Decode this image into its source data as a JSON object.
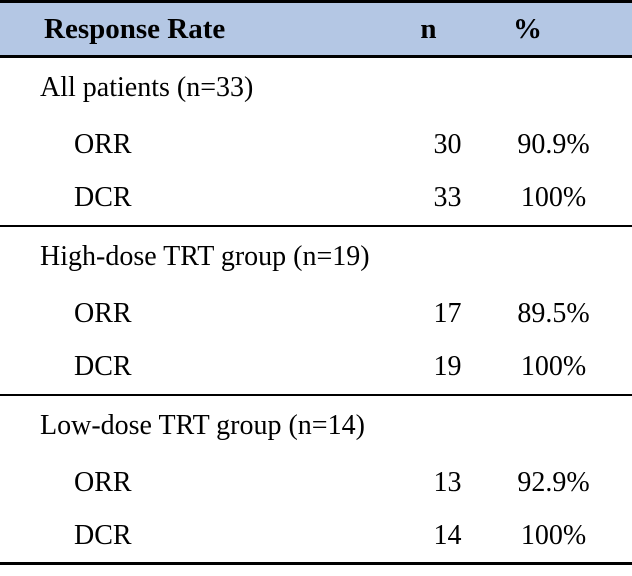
{
  "colors": {
    "header_bg": "#b4c7e4",
    "border": "#000000",
    "text": "#000000"
  },
  "table": {
    "header": {
      "label": "Response Rate",
      "n": "n",
      "pct": "%"
    },
    "sections": [
      {
        "label": "All patients (n=33)",
        "rows": [
          {
            "metric": "ORR",
            "n": "30",
            "pct": "90.9%"
          },
          {
            "metric": "DCR",
            "n": "33",
            "pct": "100%"
          }
        ]
      },
      {
        "label": "High-dose TRT group (n=19)",
        "rows": [
          {
            "metric": "ORR",
            "n": "17",
            "pct": "89.5%"
          },
          {
            "metric": "DCR",
            "n": "19",
            "pct": "100%"
          }
        ]
      },
      {
        "label": "Low-dose TRT group (n=14)",
        "rows": [
          {
            "metric": "ORR",
            "n": "13",
            "pct": "92.9%"
          },
          {
            "metric": "DCR",
            "n": "14",
            "pct": "100%"
          }
        ]
      }
    ]
  },
  "chart_data": {
    "type": "table",
    "title": "Response Rate",
    "columns": [
      "Response Rate",
      "n",
      "%"
    ],
    "rows": [
      [
        "All patients (n=33)",
        null,
        null
      ],
      [
        "ORR",
        30,
        "90.9%"
      ],
      [
        "DCR",
        33,
        "100%"
      ],
      [
        "High-dose TRT group (n=19)",
        null,
        null
      ],
      [
        "ORR",
        17,
        "89.5%"
      ],
      [
        "DCR",
        19,
        "100%"
      ],
      [
        "Low-dose TRT group (n=14)",
        null,
        null
      ],
      [
        "ORR",
        13,
        "92.9%"
      ],
      [
        "DCR",
        14,
        "100%"
      ]
    ]
  }
}
